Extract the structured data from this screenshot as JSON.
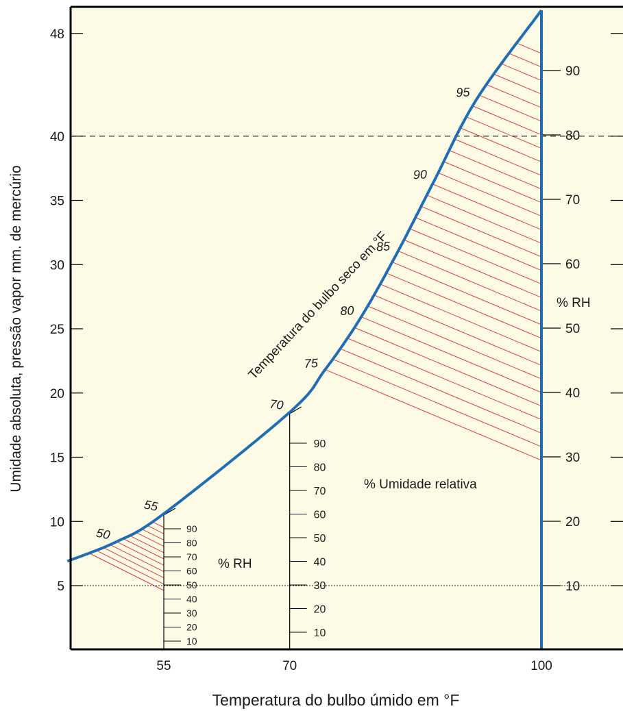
{
  "chart_data": {
    "type": "line",
    "title": "",
    "xlabel": "Temperatura do bulbo úmido em °F",
    "ylabel": "Umidade absoluta, pressão vapor mm. de mercúrio",
    "x_ticks": [
      "55",
      "70",
      "100"
    ],
    "y_ticks": [
      "5",
      "10",
      "15",
      "20",
      "25",
      "30",
      "35",
      "40",
      "48"
    ],
    "curve": {
      "label": "Temperatura do bulbo seco em °F",
      "color": "#1f6db5",
      "points": [
        {
          "t": "",
          "x": 43.5,
          "y": 6.9
        },
        {
          "t": "50",
          "x": 49.3,
          "y": 8.4
        },
        {
          "t": "55",
          "x": 55,
          "y": 10.6
        },
        {
          "t": "70",
          "x": 70,
          "y": 18.5
        },
        {
          "t": "75",
          "x": 74.2,
          "y": 21.8
        },
        {
          "t": "80",
          "x": 78.5,
          "y": 25.9
        },
        {
          "t": "85",
          "x": 82.8,
          "y": 30.9
        },
        {
          "t": "90",
          "x": 87.2,
          "y": 36.5
        },
        {
          "t": "95",
          "x": 92.3,
          "y": 42.9
        },
        {
          "t": "",
          "x": 100,
          "y": 49.8
        }
      ]
    },
    "rh_scales": [
      {
        "x": 55,
        "label": "% RH",
        "ticks": [
          "10",
          "20",
          "30",
          "40",
          "50",
          "60",
          "70",
          "80",
          "90"
        ]
      },
      {
        "x": 70,
        "label": "% Umidade relativa",
        "ticks": [
          "10",
          "20",
          "30",
          "40",
          "50",
          "60",
          "70",
          "80",
          "90"
        ]
      },
      {
        "x": 100,
        "label": "% RH",
        "ticks": [
          "10",
          "20",
          "30",
          "40",
          "50",
          "60",
          "70",
          "80",
          "90"
        ]
      }
    ],
    "reference_lines": [
      {
        "y": 40,
        "style": "dashed"
      },
      {
        "y": 5,
        "style": "dotted"
      }
    ],
    "colors": {
      "background": "#fdfbe6",
      "curve": "#1f6db5",
      "hatch": "#e23b3b",
      "axis": "#000000"
    }
  }
}
